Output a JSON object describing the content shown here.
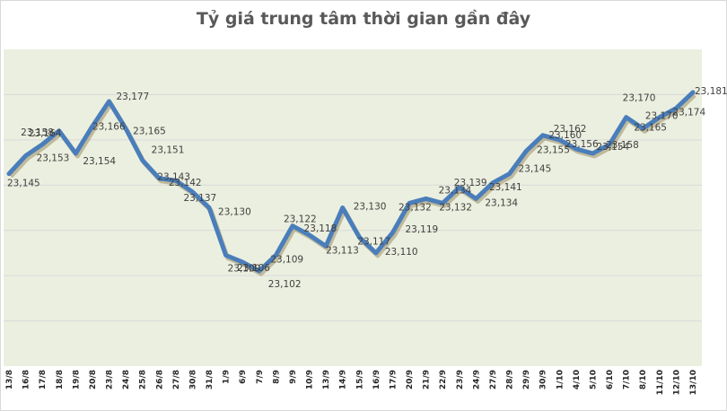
{
  "title": "Tỷ giá trung tâm thời gian gần đây",
  "colors": {
    "line": "#4a7ebb",
    "shadow": "#8c7a4a",
    "plot_bg": "#ebefdf",
    "grid": "#d9d9d9",
    "label": "#404040",
    "title": "#595959"
  },
  "chart_data": {
    "type": "line",
    "title": "Tỷ giá trung tâm thời gian gần đây",
    "xlabel": "",
    "ylabel": "",
    "ylim": [
      23060,
      23200
    ],
    "grid": true,
    "legend": "none",
    "categories": [
      "13/8",
      "16/8",
      "17/8",
      "18/8",
      "19/8",
      "20/8",
      "23/8",
      "24/8",
      "25/8",
      "26/8",
      "27/8",
      "30/8",
      "31/8",
      "1/9",
      "6/9",
      "7/9",
      "8/9",
      "9/9",
      "10/9",
      "13/9",
      "14/9",
      "15/9",
      "16/9",
      "17/9",
      "20/9",
      "21/9",
      "22/9",
      "23/9",
      "24/9",
      "27/9",
      "28/9",
      "29/9",
      "30/9",
      "1/10",
      "4/10",
      "5/10",
      "6/10",
      "7/10",
      "8/10",
      "11/10",
      "12/10",
      "13/10"
    ],
    "series": [
      {
        "name": "Tỷ giá trung tâm",
        "values": [
          23145,
          23153,
          23158,
          23164,
          23154,
          23166,
          23177,
          23165,
          23151,
          23143,
          23142,
          23137,
          23130,
          23109,
          23106,
          23102,
          23109,
          23122,
          23118,
          23113,
          23130,
          23117,
          23110,
          23119,
          23132,
          23134,
          23132,
          23139,
          23134,
          23141,
          23145,
          23155,
          23162,
          23160,
          23156,
          23154,
          23158,
          23170,
          23165,
          23170,
          23174,
          23181
        ],
        "labels": [
          "23,145",
          "23,153",
          "23,158",
          "23,164",
          "23,154",
          "23,166",
          "23,177",
          "23,165",
          "23,151",
          "23,143",
          "23,142",
          "23,137",
          "23,130",
          "23,109",
          "23,106",
          "23,102",
          "23,109",
          "23,122",
          "23,118",
          "23,113",
          "23,130",
          "23,117",
          "23,110",
          "23,119",
          "23,132",
          "23,134",
          "23,132",
          "23,139",
          "23,134",
          "23,141",
          "23,145",
          "23,155",
          "23,162",
          "23,160",
          "23,156",
          "23,154",
          "23,158",
          "23,170",
          "23,165",
          "23,170",
          "23,174",
          "23,181"
        ]
      }
    ]
  }
}
